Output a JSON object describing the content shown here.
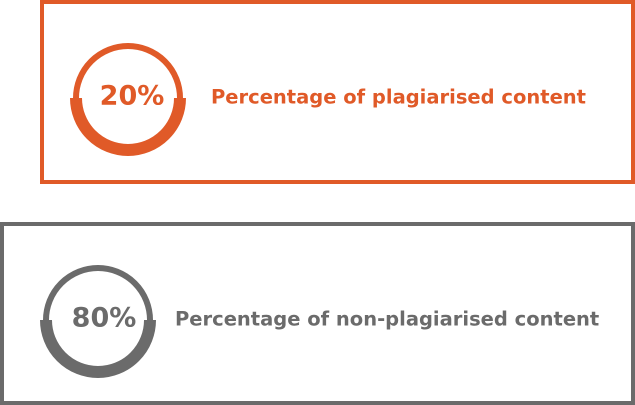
{
  "cards": [
    {
      "percent_text": "20%",
      "percent_value": 20,
      "label": "Percentage of plagiarised content",
      "color": "#e05a28"
    },
    {
      "percent_text": "80%",
      "percent_value": 80,
      "label": "Percentage of non-plagiarised content",
      "color": "#6b6b6b"
    }
  ]
}
